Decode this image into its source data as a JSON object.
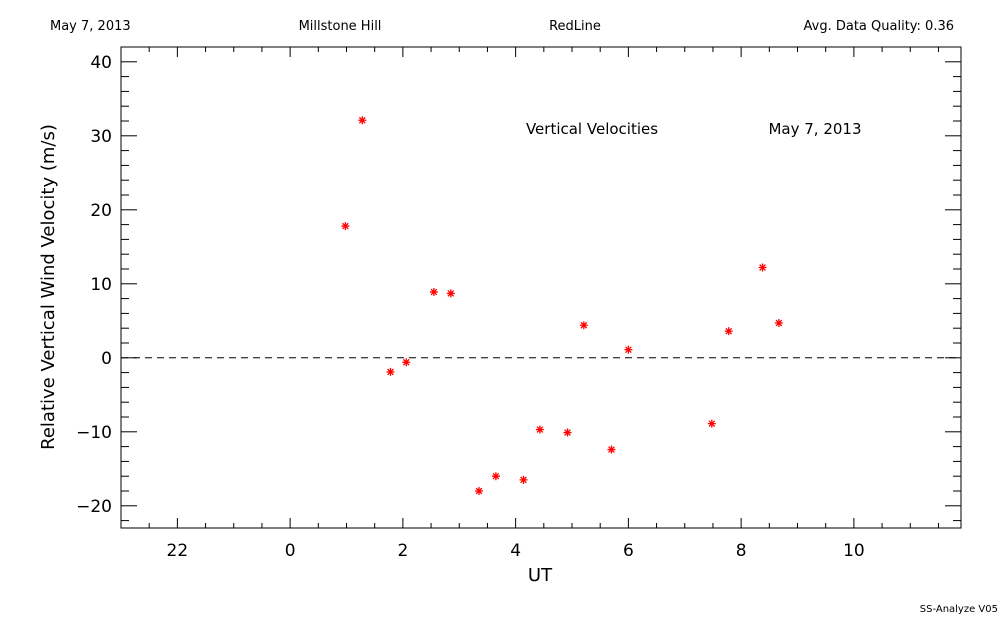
{
  "header": {
    "date": "May 7, 2013",
    "site": "Millstone Hill",
    "line": "RedLine",
    "quality": "Avg. Data Quality: 0.36"
  },
  "footer": {
    "version": "SS-Analyze V05"
  },
  "chart_data": {
    "type": "scatter",
    "xlabel": "UT",
    "ylabel": "Relative Vertical Wind Velocity (m/s)",
    "xlim": [
      21.0,
      35.9
    ],
    "ylim": [
      -23.0,
      42.0
    ],
    "x_ticks": [
      {
        "value": 22,
        "label": "22"
      },
      {
        "value": 24,
        "label": "0"
      },
      {
        "value": 26,
        "label": "2"
      },
      {
        "value": 28,
        "label": "4"
      },
      {
        "value": 30,
        "label": "6"
      },
      {
        "value": 32,
        "label": "8"
      },
      {
        "value": 34,
        "label": "10"
      }
    ],
    "y_ticks": [
      {
        "value": -20,
        "label": "−20"
      },
      {
        "value": -10,
        "label": "−10"
      },
      {
        "value": 0,
        "label": "0"
      },
      {
        "value": 10,
        "label": "10"
      },
      {
        "value": 20,
        "label": "20"
      },
      {
        "value": 30,
        "label": "30"
      },
      {
        "value": 40,
        "label": "40"
      }
    ],
    "annotations": [
      "Vertical Velocities",
      "May 7, 2013"
    ],
    "reference_line": {
      "y": 0,
      "style": "dashed"
    },
    "marker_color": "#ff0000",
    "series": [
      {
        "x": [
          24.98,
          25.28,
          25.78,
          26.06,
          26.55,
          26.85,
          27.35,
          27.65,
          28.14,
          28.43,
          28.92,
          29.21,
          29.7,
          30.0,
          31.48,
          31.78,
          32.38,
          32.67
        ],
        "y": [
          17.8,
          32.1,
          -1.9,
          -0.6,
          8.9,
          8.7,
          -18.0,
          -16.0,
          -16.5,
          -9.7,
          -10.1,
          4.4,
          -12.4,
          1.1,
          -8.9,
          3.6,
          12.2,
          4.7
        ]
      }
    ]
  }
}
